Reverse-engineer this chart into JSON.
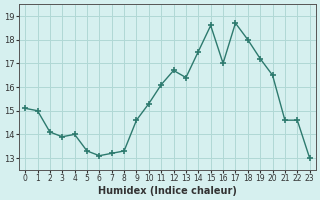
{
  "x": [
    0,
    1,
    2,
    3,
    4,
    5,
    6,
    7,
    8,
    9,
    10,
    11,
    12,
    13,
    14,
    15,
    16,
    17,
    18,
    19,
    20,
    21,
    22,
    23
  ],
  "y": [
    15.1,
    15.0,
    14.1,
    13.9,
    14.0,
    13.3,
    13.1,
    13.2,
    13.3,
    14.6,
    15.3,
    16.1,
    16.7,
    16.4,
    17.5,
    18.6,
    17.0,
    18.7,
    18.0,
    17.2,
    16.5,
    14.6,
    14.6,
    13.0
  ],
  "xlabel": "Humidex (Indice chaleur)",
  "ylim": [
    12.5,
    19.5
  ],
  "xlim": [
    -0.5,
    23.5
  ],
  "line_color": "#2d7a6e",
  "marker": "+",
  "bg_color": "#d6f0ef",
  "grid_color": "#b0d8d5",
  "axis_color": "#555555",
  "tick_label_color": "#333333",
  "xlabel_color": "#333333",
  "yticks": [
    13,
    14,
    15,
    16,
    17,
    18,
    19
  ],
  "xtick_labels": [
    "0",
    "1",
    "2",
    "3",
    "4",
    "5",
    "6",
    "7",
    "8",
    "9",
    "10",
    "11",
    "12",
    "13",
    "14",
    "15",
    "16",
    "17",
    "18",
    "19",
    "20",
    "21",
    "22",
    "23"
  ]
}
